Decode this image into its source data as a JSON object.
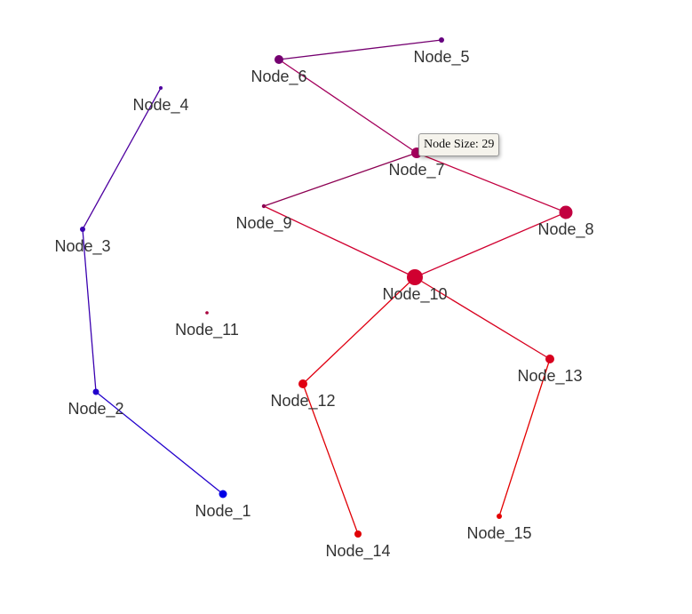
{
  "nodes": [
    {
      "id": "Node_1",
      "color": "#0000e6"
    },
    {
      "id": "Node_2",
      "color": "#2200cc"
    },
    {
      "id": "Node_3",
      "color": "#3a00b0"
    },
    {
      "id": "Node_4",
      "color": "#4e00a0"
    },
    {
      "id": "Node_5",
      "color": "#66007f"
    },
    {
      "id": "Node_6",
      "color": "#750070"
    },
    {
      "id": "Node_7",
      "color": "#a3005c"
    },
    {
      "id": "Node_8",
      "color": "#c20040"
    },
    {
      "id": "Node_9",
      "color": "#8c0052"
    },
    {
      "id": "Node_10",
      "color": "#d00030"
    },
    {
      "id": "Node_11",
      "color": "#a8003c"
    },
    {
      "id": "Node_12",
      "color": "#e00012"
    },
    {
      "id": "Node_13",
      "color": "#d8001e"
    },
    {
      "id": "Node_14",
      "color": "#e00006"
    },
    {
      "id": "Node_15",
      "color": "#e40000"
    }
  ],
  "edges": [
    [
      "Node_1",
      "Node_2"
    ],
    [
      "Node_2",
      "Node_3"
    ],
    [
      "Node_3",
      "Node_4"
    ],
    [
      "Node_5",
      "Node_6"
    ],
    [
      "Node_6",
      "Node_7"
    ],
    [
      "Node_7",
      "Node_9"
    ],
    [
      "Node_7",
      "Node_8"
    ],
    [
      "Node_9",
      "Node_10"
    ],
    [
      "Node_8",
      "Node_10"
    ],
    [
      "Node_10",
      "Node_12"
    ],
    [
      "Node_10",
      "Node_13"
    ],
    [
      "Node_12",
      "Node_14"
    ],
    [
      "Node_13",
      "Node_15"
    ]
  ],
  "tooltip": {
    "node": "Node_7",
    "text": "Node Size: 29"
  }
}
